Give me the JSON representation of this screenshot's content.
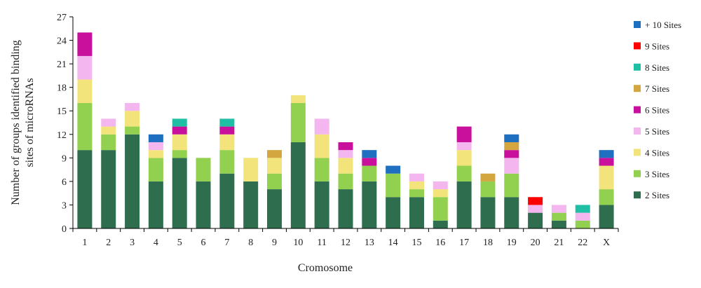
{
  "chart_data": {
    "type": "bar",
    "stacked": true,
    "xlabel": "Cromosome",
    "ylabel_lines": [
      "Number of groups identified binding",
      "sites of microRNAs"
    ],
    "ylim": [
      0,
      27
    ],
    "yticks": [
      0,
      3,
      6,
      9,
      12,
      15,
      18,
      21,
      24,
      27
    ],
    "grid": false,
    "legend_position": "right",
    "categories": [
      "1",
      "2",
      "3",
      "4",
      "5",
      "6",
      "7",
      "8",
      "9",
      "10",
      "11",
      "12",
      "13",
      "14",
      "15",
      "16",
      "17",
      "18",
      "19",
      "20",
      "21",
      "22",
      "X"
    ],
    "series": [
      {
        "name": "2 Sites",
        "color": "#2e6e4e",
        "values": [
          10,
          10,
          12,
          6,
          9,
          6,
          7,
          6,
          5,
          11,
          6,
          5,
          6,
          4,
          4,
          1,
          6,
          4,
          4,
          2,
          1,
          0,
          3
        ]
      },
      {
        "name": "3 Sites",
        "color": "#92d050",
        "values": [
          6,
          2,
          1,
          3,
          1,
          3,
          3,
          0,
          2,
          5,
          3,
          2,
          2,
          3,
          1,
          3,
          2,
          2,
          3,
          0,
          1,
          1,
          2
        ]
      },
      {
        "name": "4 Sites",
        "color": "#f2e47a",
        "values": [
          3,
          1,
          2,
          1,
          2,
          0,
          2,
          3,
          2,
          1,
          3,
          2,
          0,
          0,
          1,
          1,
          2,
          0,
          0,
          0,
          0,
          0,
          3
        ]
      },
      {
        "name": "5 Sites",
        "color": "#f4b6ee",
        "values": [
          3,
          1,
          1,
          1,
          0,
          0,
          0,
          0,
          0,
          0,
          2,
          1,
          0,
          0,
          1,
          1,
          1,
          0,
          2,
          1,
          1,
          1,
          0
        ]
      },
      {
        "name": "6 Sites",
        "color": "#c8109c",
        "values": [
          3,
          0,
          0,
          0,
          1,
          0,
          1,
          0,
          0,
          0,
          0,
          1,
          1,
          0,
          0,
          0,
          2,
          0,
          1,
          0,
          0,
          0,
          1
        ]
      },
      {
        "name": "7 Sites",
        "color": "#d4a640",
        "values": [
          0,
          0,
          0,
          0,
          0,
          0,
          0,
          0,
          1,
          0,
          0,
          0,
          0,
          0,
          0,
          0,
          0,
          1,
          1,
          0,
          0,
          0,
          0
        ]
      },
      {
        "name": "8 Sites",
        "color": "#1fbfa5",
        "values": [
          0,
          0,
          0,
          0,
          1,
          0,
          1,
          0,
          0,
          0,
          0,
          0,
          0,
          0,
          0,
          0,
          0,
          0,
          0,
          0,
          0,
          1,
          0
        ]
      },
      {
        "name": "9 Sites",
        "color": "#ff0000",
        "values": [
          0,
          0,
          0,
          0,
          0,
          0,
          0,
          0,
          0,
          0,
          0,
          0,
          0,
          0,
          0,
          0,
          0,
          0,
          0,
          1,
          0,
          0,
          0
        ]
      },
      {
        "name": "+ 10 Sites",
        "color": "#1e6fbf",
        "values": [
          0,
          0,
          0,
          1,
          0,
          0,
          0,
          0,
          0,
          0,
          0,
          0,
          1,
          1,
          0,
          0,
          0,
          0,
          1,
          0,
          0,
          0,
          1
        ]
      }
    ]
  }
}
